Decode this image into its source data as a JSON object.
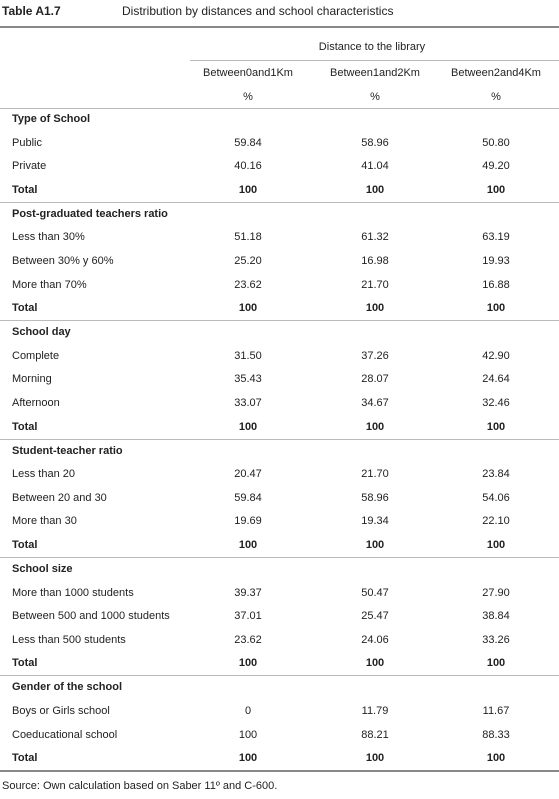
{
  "header": {
    "label": "Table A1.7",
    "title": "Distribution by distances and school characteristics"
  },
  "table": {
    "group_header": "Distance to the library",
    "columns": [
      "Between0and1Km",
      "Between1and2Km",
      "Between2and4Km"
    ],
    "units": [
      "%",
      "%",
      "%"
    ],
    "sections": [
      {
        "title": "Type of School",
        "rows": [
          [
            "Public",
            "59.84",
            "58.96",
            "50.80"
          ],
          [
            "Private",
            "40.16",
            "41.04",
            "49.20"
          ],
          [
            "Total",
            "100",
            "100",
            "100"
          ]
        ]
      },
      {
        "title": "Post-graduated teachers ratio",
        "rows": [
          [
            "Less than 30%",
            "51.18",
            "61.32",
            "63.19"
          ],
          [
            "Between 30% y 60%",
            "25.20",
            "16.98",
            "19.93"
          ],
          [
            "More than 70%",
            "23.62",
            "21.70",
            "16.88"
          ],
          [
            "Total",
            "100",
            "100",
            "100"
          ]
        ]
      },
      {
        "title": "School day",
        "rows": [
          [
            "Complete",
            "31.50",
            "37.26",
            "42.90"
          ],
          [
            "Morning",
            "35.43",
            "28.07",
            "24.64"
          ],
          [
            "Afternoon",
            "33.07",
            "34.67",
            "32.46"
          ],
          [
            "Total",
            "100",
            "100",
            "100"
          ]
        ]
      },
      {
        "title": "Student-teacher ratio",
        "rows": [
          [
            "Less than 20",
            "20.47",
            "21.70",
            "23.84"
          ],
          [
            "Between 20 and 30",
            "59.84",
            "58.96",
            "54.06"
          ],
          [
            "More than 30",
            "19.69",
            "19.34",
            "22.10"
          ],
          [
            "Total",
            "100",
            "100",
            "100"
          ]
        ]
      },
      {
        "title": "School size",
        "rows": [
          [
            "More than 1000 students",
            "39.37",
            "50.47",
            "27.90"
          ],
          [
            "Between 500 and 1000 students",
            "37.01",
            "25.47",
            "38.84"
          ],
          [
            "Less than 500 students",
            "23.62",
            "24.06",
            "33.26"
          ],
          [
            "Total",
            "100",
            "100",
            "100"
          ]
        ]
      },
      {
        "title": "Gender of the school",
        "rows": [
          [
            "Boys or Girls school",
            "0",
            "11.79",
            "11.67"
          ],
          [
            "Coeducational school",
            "100",
            "88.21",
            "88.33"
          ],
          [
            "Total",
            "100",
            "100",
            "100"
          ]
        ]
      }
    ]
  },
  "source": "Source: Own calculation based on Saber 11º and C-600."
}
